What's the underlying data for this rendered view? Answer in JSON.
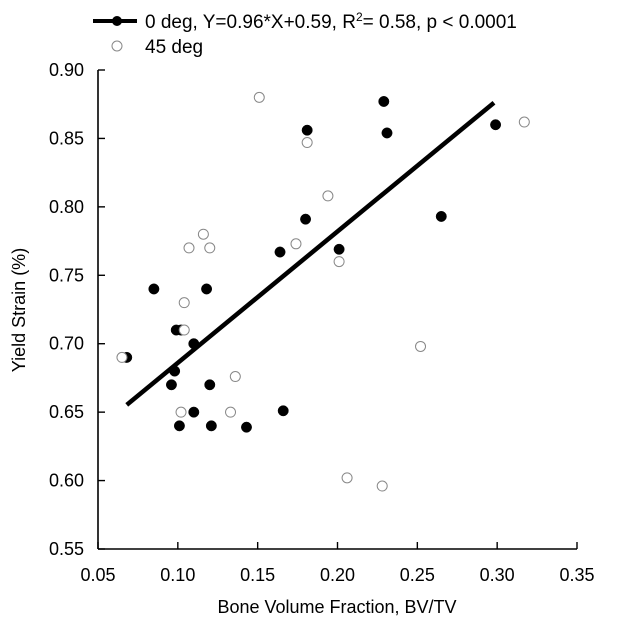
{
  "chart_data": {
    "type": "scatter",
    "xlabel": "Bone Volume Fraction, BV/TV",
    "ylabel": "Yield Strain (%)",
    "xlim": [
      0.05,
      0.35
    ],
    "ylim": [
      0.55,
      0.9
    ],
    "xticks": [
      "0.05",
      "0.10",
      "0.15",
      "0.20",
      "0.25",
      "0.30",
      "0.35"
    ],
    "yticks": [
      "0.55",
      "0.60",
      "0.65",
      "0.70",
      "0.75",
      "0.80",
      "0.85",
      "0.90"
    ],
    "grid": false,
    "legend_position": "top",
    "series": [
      {
        "name": "0 deg",
        "legend_label": "0 deg, Y=0.96*X+0.59,  R",
        "legend_sup": "2",
        "legend_tail": "= 0.58, p < 0.0001",
        "marker": "filled-circle",
        "color": "#000000",
        "points": [
          [
            0.068,
            0.69
          ],
          [
            0.085,
            0.74
          ],
          [
            0.096,
            0.67
          ],
          [
            0.098,
            0.68
          ],
          [
            0.099,
            0.71
          ],
          [
            0.101,
            0.64
          ],
          [
            0.102,
            0.71
          ],
          [
            0.11,
            0.7
          ],
          [
            0.11,
            0.65
          ],
          [
            0.118,
            0.74
          ],
          [
            0.12,
            0.67
          ],
          [
            0.121,
            0.64
          ],
          [
            0.143,
            0.639
          ],
          [
            0.164,
            0.767
          ],
          [
            0.166,
            0.651
          ],
          [
            0.18,
            0.791
          ],
          [
            0.181,
            0.856
          ],
          [
            0.201,
            0.769
          ],
          [
            0.229,
            0.877
          ],
          [
            0.231,
            0.854
          ],
          [
            0.265,
            0.793
          ],
          [
            0.299,
            0.86
          ]
        ]
      },
      {
        "name": "45 deg",
        "legend_label": "45 deg",
        "marker": "open-circle",
        "color": "#000000",
        "points": [
          [
            0.065,
            0.69
          ],
          [
            0.102,
            0.65
          ],
          [
            0.104,
            0.73
          ],
          [
            0.104,
            0.71
          ],
          [
            0.107,
            0.77
          ],
          [
            0.116,
            0.78
          ],
          [
            0.12,
            0.77
          ],
          [
            0.133,
            0.65
          ],
          [
            0.136,
            0.676
          ],
          [
            0.151,
            0.88
          ],
          [
            0.174,
            0.773
          ],
          [
            0.181,
            0.847
          ],
          [
            0.194,
            0.808
          ],
          [
            0.201,
            0.76
          ],
          [
            0.206,
            0.602
          ],
          [
            0.228,
            0.596
          ],
          [
            0.252,
            0.698
          ],
          [
            0.317,
            0.862
          ]
        ]
      }
    ],
    "fit_line": {
      "series": "0 deg",
      "x": [
        0.068,
        0.298
      ],
      "y": [
        0.6553,
        0.8761
      ]
    }
  }
}
